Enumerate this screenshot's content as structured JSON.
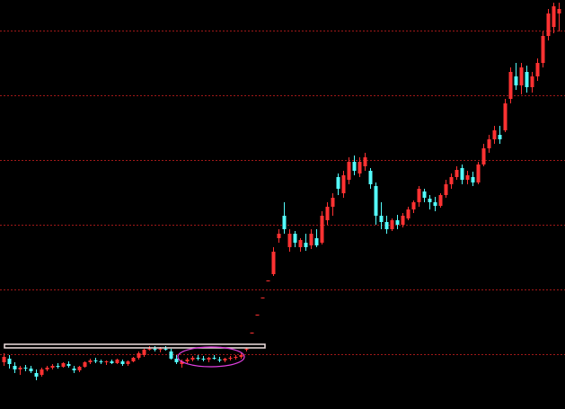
{
  "chart_data": {
    "type": "candlestick",
    "ohlc": [
      [
        52,
        62,
        48,
        58
      ],
      [
        56,
        60,
        45,
        50
      ],
      [
        48,
        52,
        40,
        44
      ],
      [
        44,
        48,
        38,
        46
      ],
      [
        46,
        49,
        42,
        45
      ],
      [
        45,
        48,
        40,
        42
      ],
      [
        40,
        44,
        32,
        36
      ],
      [
        38,
        46,
        36,
        44
      ],
      [
        44,
        48,
        42,
        46
      ],
      [
        46,
        50,
        44,
        48
      ],
      [
        48,
        51,
        45,
        47
      ],
      [
        47,
        52,
        46,
        51
      ],
      [
        50,
        53,
        46,
        48
      ],
      [
        45,
        48,
        40,
        43
      ],
      [
        43,
        48,
        41,
        47
      ],
      [
        47,
        53,
        46,
        52
      ],
      [
        52,
        56,
        50,
        54
      ],
      [
        54,
        57,
        51,
        53
      ],
      [
        53,
        55,
        50,
        52
      ],
      [
        52,
        54,
        49,
        53
      ],
      [
        53,
        55,
        50,
        51
      ],
      [
        51,
        56,
        50,
        55
      ],
      [
        53,
        55,
        48,
        50
      ],
      [
        50,
        54,
        48,
        53
      ],
      [
        53,
        58,
        52,
        57
      ],
      [
        57,
        64,
        55,
        62
      ],
      [
        60,
        67,
        58,
        66
      ],
      [
        66,
        70,
        65,
        67
      ],
      [
        67,
        70,
        64,
        66
      ],
      [
        66,
        69,
        63,
        67
      ],
      [
        67,
        70,
        65,
        66
      ],
      [
        64,
        67,
        55,
        56
      ],
      [
        56,
        60,
        50,
        52
      ],
      [
        50,
        55,
        46,
        53
      ],
      [
        53,
        57,
        51,
        55
      ],
      [
        55,
        59,
        53,
        57
      ],
      [
        57,
        60,
        54,
        56
      ],
      [
        56,
        59,
        53,
        55
      ],
      [
        55,
        58,
        52,
        57
      ],
      [
        57,
        60,
        55,
        56
      ],
      [
        55,
        58,
        52,
        54
      ],
      [
        54,
        57,
        52,
        56
      ],
      [
        56,
        59,
        54,
        57
      ],
      [
        57,
        60,
        55,
        58
      ],
      [
        58,
        62,
        56,
        60
      ],
      [
        66,
        68,
        64,
        67
      ],
      [
        85,
        85,
        85,
        85
      ],
      [
        105,
        105,
        105,
        105
      ],
      [
        124,
        124,
        124,
        124
      ],
      [
        143,
        143,
        143,
        143
      ],
      [
        150,
        180,
        148,
        175
      ],
      [
        190,
        200,
        185,
        195
      ],
      [
        215,
        230,
        195,
        200
      ],
      [
        180,
        200,
        175,
        195
      ],
      [
        195,
        198,
        180,
        185
      ],
      [
        180,
        190,
        175,
        188
      ],
      [
        185,
        195,
        176,
        180
      ],
      [
        182,
        200,
        178,
        195
      ],
      [
        190,
        200,
        180,
        182
      ],
      [
        185,
        220,
        183,
        215
      ],
      [
        210,
        230,
        205,
        225
      ],
      [
        225,
        240,
        215,
        235
      ],
      [
        258,
        262,
        238,
        245
      ],
      [
        240,
        265,
        235,
        260
      ],
      [
        255,
        280,
        250,
        275
      ],
      [
        275,
        282,
        260,
        265
      ],
      [
        262,
        280,
        258,
        275
      ],
      [
        270,
        285,
        265,
        280
      ],
      [
        265,
        268,
        245,
        250
      ],
      [
        248,
        252,
        205,
        215
      ],
      [
        215,
        230,
        200,
        208
      ],
      [
        208,
        215,
        195,
        200
      ],
      [
        200,
        212,
        198,
        210
      ],
      [
        210,
        216,
        200,
        205
      ],
      [
        205,
        218,
        202,
        215
      ],
      [
        212,
        225,
        210,
        222
      ],
      [
        222,
        232,
        218,
        230
      ],
      [
        230,
        248,
        225,
        245
      ],
      [
        242,
        245,
        230,
        235
      ],
      [
        234,
        238,
        222,
        230
      ],
      [
        230,
        236,
        220,
        226
      ],
      [
        226,
        240,
        224,
        238
      ],
      [
        238,
        255,
        235,
        250
      ],
      [
        250,
        262,
        245,
        258
      ],
      [
        258,
        270,
        255,
        266
      ],
      [
        268,
        272,
        250,
        255
      ],
      [
        255,
        265,
        250,
        260
      ],
      [
        258,
        264,
        248,
        252
      ],
      [
        252,
        275,
        250,
        272
      ],
      [
        272,
        295,
        270,
        290
      ],
      [
        290,
        305,
        285,
        300
      ],
      [
        300,
        315,
        295,
        310
      ],
      [
        305,
        315,
        295,
        300
      ],
      [
        310,
        345,
        308,
        340
      ],
      [
        345,
        380,
        340,
        375
      ],
      [
        370,
        385,
        355,
        360
      ],
      [
        360,
        385,
        350,
        380
      ],
      [
        375,
        382,
        352,
        358
      ],
      [
        358,
        375,
        352,
        370
      ],
      [
        370,
        390,
        365,
        385
      ],
      [
        385,
        420,
        380,
        415
      ],
      [
        415,
        445,
        410,
        440
      ],
      [
        425,
        452,
        418,
        448
      ],
      [
        440,
        452,
        420,
        445
      ]
    ],
    "ylim": [
      0,
      455
    ],
    "yticks": [
      61,
      133,
      205,
      277,
      349,
      421
    ],
    "grid": true,
    "up_color": "#ff3232",
    "down_color": "#54fcfc",
    "grid_color": "#a01818"
  }
}
